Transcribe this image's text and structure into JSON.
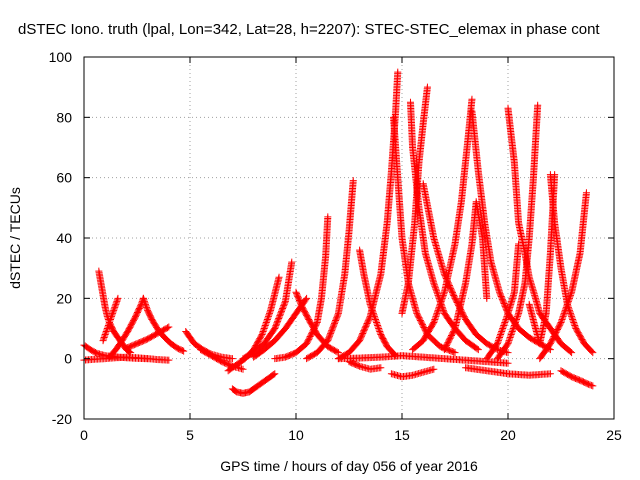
{
  "chart_data": {
    "type": "scatter",
    "title": "dSTEC Iono. truth (lpal, Lon=342, Lat=28, h=2207): STEC-STEC_elemax in phase cont",
    "xlabel": "GPS time / hours of day 056 of year 2016",
    "ylabel": "dSTEC  / TECUs",
    "xlim": [
      0,
      25
    ],
    "ylim": [
      -20,
      100
    ],
    "x_ticks": [
      "0",
      "5",
      "10",
      "15",
      "20",
      "25"
    ],
    "y_ticks": [
      "-20",
      "0",
      "20",
      "40",
      "60",
      "80",
      "100"
    ],
    "grid": true,
    "marker": "+",
    "color": "#ff0000",
    "series": [
      {
        "x": [
          0.0,
          0.3,
          0.6,
          1.0,
          1.5,
          2.0,
          2.5,
          3.0
        ],
        "y": [
          4.5,
          3.0,
          1.8,
          1.0,
          0.6,
          0.3,
          0.1,
          0.0
        ]
      },
      {
        "x": [
          0.0,
          0.5,
          1.0,
          1.5,
          2.0,
          2.5,
          3.0,
          3.5,
          4.0
        ],
        "y": [
          -0.5,
          -0.2,
          0.0,
          0.3,
          0.5,
          0.3,
          0.0,
          -0.3,
          -0.5
        ]
      },
      {
        "x": [
          0.7,
          0.8,
          0.9,
          1.0,
          1.1,
          1.2,
          1.4,
          1.6,
          1.8,
          2.0,
          2.2
        ],
        "y": [
          29.0,
          25.0,
          21.0,
          17.0,
          14.0,
          12.0,
          9.0,
          7.0,
          5.0,
          3.0,
          2.0
        ]
      },
      {
        "x": [
          0.9,
          1.1,
          1.3,
          1.5,
          1.6
        ],
        "y": [
          6.0,
          10.0,
          14.0,
          18.0,
          20.0
        ]
      },
      {
        "x": [
          1.2,
          1.5,
          1.8,
          2.1,
          2.4,
          2.7,
          2.8
        ],
        "y": [
          0.5,
          3.0,
          6.0,
          9.5,
          13.5,
          18.0,
          20.0
        ]
      },
      {
        "x": [
          2.8,
          3.0,
          3.2,
          3.5,
          3.8,
          4.1,
          4.4,
          4.7
        ],
        "y": [
          20.0,
          16.0,
          13.0,
          9.5,
          7.0,
          5.0,
          3.5,
          2.5
        ]
      },
      {
        "x": [
          2.0,
          2.5,
          3.0,
          3.5,
          4.0
        ],
        "y": [
          3.5,
          5.0,
          6.5,
          8.5,
          10.5
        ]
      },
      {
        "x": [
          4.8,
          5.2,
          5.6,
          6.0,
          6.5,
          7.0
        ],
        "y": [
          9.0,
          5.0,
          3.0,
          1.5,
          0.5,
          0.0
        ]
      },
      {
        "x": [
          5.5,
          6.0,
          6.5,
          7.0,
          7.5
        ],
        "y": [
          3.0,
          1.0,
          -1.0,
          -2.5,
          -3.5
        ]
      },
      {
        "x": [
          7.0,
          7.2,
          7.5,
          7.8,
          8.0,
          8.2,
          8.5,
          8.8,
          9.0
        ],
        "y": [
          -10.0,
          -11.0,
          -11.5,
          -11.0,
          -10.0,
          -9.0,
          -7.5,
          -6.0,
          -5.0
        ]
      },
      {
        "x": [
          6.8,
          7.2,
          7.6,
          8.0,
          8.4,
          8.8,
          9.2
        ],
        "y": [
          -4.0,
          -2.0,
          0.0,
          3.0,
          8.0,
          16.0,
          27.0
        ]
      },
      {
        "x": [
          7.5,
          8.0,
          8.5,
          9.0,
          9.5,
          9.8
        ],
        "y": [
          0.0,
          2.0,
          5.0,
          10.0,
          19.0,
          32.0
        ]
      },
      {
        "x": [
          8.0,
          8.5,
          9.0,
          9.5,
          10.0,
          10.5
        ],
        "y": [
          0.5,
          3.0,
          6.0,
          10.0,
          15.0,
          20.0
        ]
      },
      {
        "x": [
          10.0,
          10.3,
          10.6,
          11.0,
          11.5,
          12.0
        ],
        "y": [
          22.0,
          17.0,
          13.0,
          8.0,
          4.0,
          2.0
        ]
      },
      {
        "x": [
          9.0,
          9.5,
          10.0,
          10.5,
          11.0,
          11.2,
          11.4,
          11.5
        ],
        "y": [
          0.0,
          0.5,
          2.0,
          5.0,
          12.0,
          20.0,
          34.0,
          47.0
        ]
      },
      {
        "x": [
          10.5,
          11.0,
          11.5,
          12.0,
          12.3,
          12.5,
          12.7
        ],
        "y": [
          0.0,
          2.0,
          6.0,
          15.0,
          28.0,
          42.0,
          59.0
        ]
      },
      {
        "x": [
          12.0,
          12.5,
          13.0,
          13.5,
          14.0,
          14.3,
          14.5,
          14.7,
          14.8
        ],
        "y": [
          0.0,
          2.0,
          6.0,
          14.0,
          28.0,
          45.0,
          62.0,
          82.0,
          95.0
        ]
      },
      {
        "x": [
          14.6,
          14.8,
          15.0,
          15.3,
          15.7,
          16.2,
          16.8,
          17.5
        ],
        "y": [
          80.0,
          60.0,
          40.0,
          25.0,
          15.0,
          8.0,
          4.0,
          2.0
        ]
      },
      {
        "x": [
          13.0,
          13.2,
          13.5,
          13.8,
          14.0,
          14.3,
          14.7
        ],
        "y": [
          36.0,
          28.0,
          18.0,
          12.0,
          8.0,
          4.0,
          1.0
        ]
      },
      {
        "x": [
          15.0,
          15.3,
          15.6,
          15.8,
          16.0,
          16.2
        ],
        "y": [
          15.0,
          25.0,
          45.0,
          65.0,
          78.0,
          90.0
        ]
      },
      {
        "x": [
          15.4,
          15.5,
          15.8,
          16.1,
          16.5,
          17.0,
          17.5,
          18.0,
          18.6
        ],
        "y": [
          85.0,
          70.0,
          50.0,
          35.0,
          25.0,
          15.0,
          10.0,
          6.0,
          3.0
        ]
      },
      {
        "x": [
          16.0,
          16.5,
          17.0,
          17.5,
          18.0,
          18.5,
          19.0,
          19.5,
          20.0
        ],
        "y": [
          58.0,
          40.0,
          28.0,
          20.0,
          13.0,
          8.0,
          5.0,
          3.0,
          2.0
        ]
      },
      {
        "x": [
          15.5,
          16.0,
          16.5,
          17.0,
          17.5,
          17.8,
          18.1,
          18.3
        ],
        "y": [
          3.0,
          6.0,
          12.0,
          22.0,
          38.0,
          52.0,
          72.0,
          86.0
        ]
      },
      {
        "x": [
          18.3,
          18.6,
          18.9,
          19.2,
          19.6,
          20.0,
          20.5,
          21.0,
          21.5,
          22.0
        ],
        "y": [
          82.0,
          62.0,
          45.0,
          32.0,
          22.0,
          15.0,
          10.0,
          7.0,
          5.0,
          3.0
        ]
      },
      {
        "x": [
          17.0,
          17.5,
          18.0,
          18.3,
          18.5,
          18.8,
          19.0
        ],
        "y": [
          3.0,
          10.0,
          25.0,
          38.0,
          52.0,
          40.0,
          20.0
        ]
      },
      {
        "x": [
          19.0,
          19.5,
          20.0,
          20.3,
          20.5
        ],
        "y": [
          0.0,
          5.0,
          15.0,
          22.0,
          38.0
        ]
      },
      {
        "x": [
          20.0,
          20.3,
          20.5,
          20.8,
          21.0,
          21.3,
          21.5,
          22.0,
          22.5,
          23.0
        ],
        "y": [
          83.0,
          65.0,
          45.0,
          35.0,
          27.0,
          20.0,
          15.0,
          10.0,
          5.0,
          2.0
        ]
      },
      {
        "x": [
          19.5,
          20.0,
          20.5,
          20.8,
          21.0,
          21.2,
          21.4
        ],
        "y": [
          0.0,
          5.0,
          15.0,
          25.0,
          40.0,
          60.0,
          84.0
        ]
      },
      {
        "x": [
          21.0,
          21.3,
          21.5,
          21.8,
          22.0,
          22.2
        ],
        "y": [
          18.0,
          10.0,
          5.0,
          15.0,
          35.0,
          61.0
        ]
      },
      {
        "x": [
          22.0,
          22.2,
          22.5,
          22.8,
          23.2,
          23.6,
          24.0
        ],
        "y": [
          61.0,
          45.0,
          30.0,
          18.0,
          10.0,
          5.0,
          2.0
        ]
      },
      {
        "x": [
          21.5,
          22.0,
          22.5,
          23.0,
          23.4,
          23.7
        ],
        "y": [
          0.0,
          5.0,
          12.0,
          22.0,
          35.0,
          55.0
        ]
      },
      {
        "x": [
          22.5,
          23.0,
          23.5,
          23.8,
          24.0
        ],
        "y": [
          -4.0,
          -6.0,
          -7.5,
          -8.5,
          -9.0
        ]
      },
      {
        "x": [
          14.5,
          15.0,
          15.5,
          16.0,
          16.5
        ],
        "y": [
          -5.0,
          -6.0,
          -5.5,
          -4.5,
          -3.5
        ]
      },
      {
        "x": [
          18.0,
          19.0,
          20.0,
          21.0,
          22.0
        ],
        "y": [
          -3.0,
          -4.0,
          -5.0,
          -5.5,
          -5.0
        ]
      },
      {
        "x": [
          12.0,
          13.0,
          14.0,
          15.0,
          16.0,
          17.0,
          18.0,
          19.0,
          20.0
        ],
        "y": [
          0.0,
          0.2,
          0.5,
          1.0,
          0.5,
          0.0,
          -0.5,
          -1.0,
          -1.5
        ]
      },
      {
        "x": [
          12.5,
          13.0,
          13.5,
          14.0
        ],
        "y": [
          -1.0,
          -2.5,
          -3.5,
          -3.0
        ]
      }
    ]
  }
}
